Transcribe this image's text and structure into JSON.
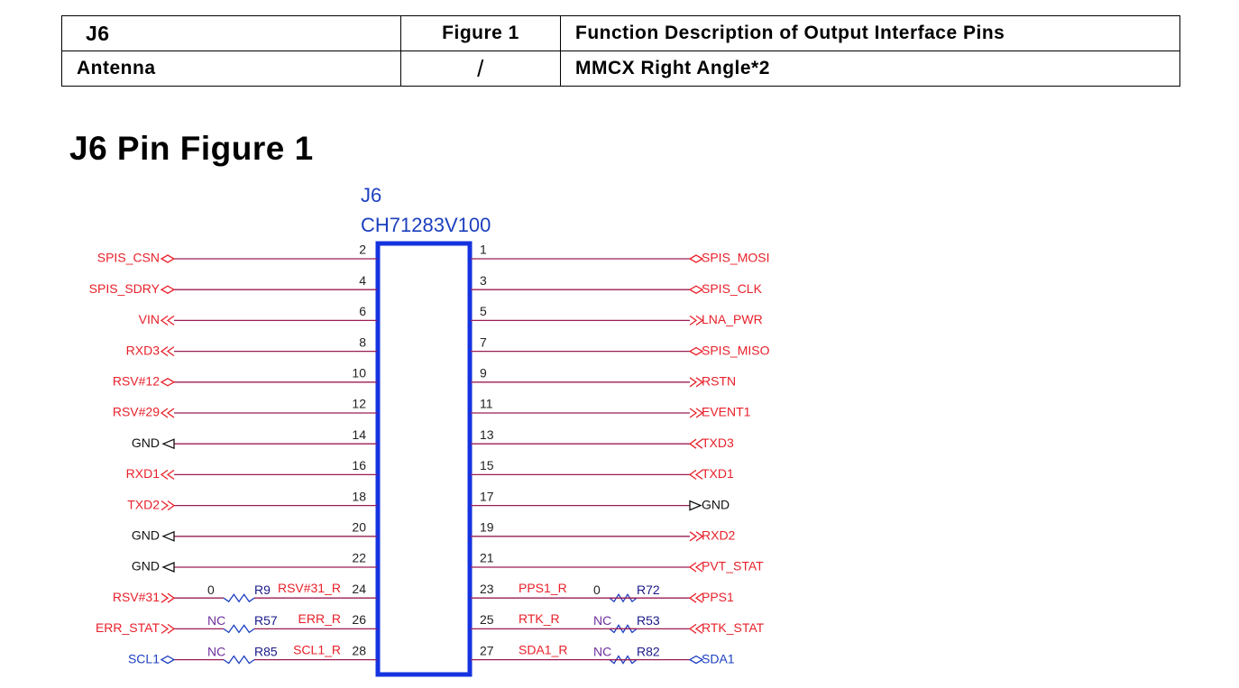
{
  "table": {
    "rows": [
      [
        "J6",
        "Figure 1",
        "Function Description of Output Interface Pins"
      ],
      [
        "Antenna",
        "/",
        "MMCX Right Angle*2"
      ]
    ]
  },
  "heading": "J6 Pin Figure 1",
  "schematic": {
    "ref": "J6",
    "part": "CH71283V100",
    "net_color": "#e8202a",
    "left": [
      {
        "pin": "2",
        "net": "SPIS_CSN",
        "port": "bidir"
      },
      {
        "pin": "4",
        "net": "SPIS_SDRY",
        "port": "bidir"
      },
      {
        "pin": "6",
        "net": "VIN",
        "port": "arrow-left"
      },
      {
        "pin": "8",
        "net": "RXD3",
        "port": "arrow-left"
      },
      {
        "pin": "10",
        "net": "RSV#12",
        "port": "bidir"
      },
      {
        "pin": "12",
        "net": "RSV#29",
        "port": "arrow-left"
      },
      {
        "pin": "14",
        "net": "GND",
        "port": "ground",
        "color": "#111111"
      },
      {
        "pin": "16",
        "net": "RXD1",
        "port": "arrow-left"
      },
      {
        "pin": "18",
        "net": "TXD2",
        "port": "arrow-right"
      },
      {
        "pin": "20",
        "net": "GND",
        "port": "ground",
        "color": "#111111"
      },
      {
        "pin": "22",
        "net": "GND",
        "port": "ground",
        "color": "#111111"
      },
      {
        "pin": "24",
        "net": "RSV#31",
        "port": "arrow-right",
        "resistor": {
          "value": "0",
          "ref": "R9",
          "signal": "RSV#31_R"
        }
      },
      {
        "pin": "26",
        "net": "ERR_STAT",
        "port": "arrow-right",
        "resistor": {
          "value": "NC",
          "ref": "R57",
          "signal": "ERR_R"
        }
      },
      {
        "pin": "28",
        "net": "SCL1",
        "port": "bidir",
        "color": "#1c3fbf",
        "resistor": {
          "value": "NC",
          "ref": "R85",
          "signal": "SCL1_R"
        }
      }
    ],
    "right": [
      {
        "pin": "1",
        "net": "SPIS_MOSI",
        "port": "bidir"
      },
      {
        "pin": "3",
        "net": "SPIS_CLK",
        "port": "bidir"
      },
      {
        "pin": "5",
        "net": "LNA_PWR",
        "port": "arrow-right"
      },
      {
        "pin": "7",
        "net": "SPIS_MISO",
        "port": "bidir"
      },
      {
        "pin": "9",
        "net": "RSTN",
        "port": "arrow-right"
      },
      {
        "pin": "11",
        "net": "EVENT1",
        "port": "arrow-right"
      },
      {
        "pin": "13",
        "net": "TXD3",
        "port": "arrow-left"
      },
      {
        "pin": "15",
        "net": "TXD1",
        "port": "arrow-left"
      },
      {
        "pin": "17",
        "net": "GND",
        "port": "ground",
        "color": "#111111"
      },
      {
        "pin": "19",
        "net": "RXD2",
        "port": "arrow-right"
      },
      {
        "pin": "21",
        "net": "PVT_STAT",
        "port": "arrow-left"
      },
      {
        "pin": "23",
        "net": "PPS1",
        "port": "arrow-left",
        "resistor": {
          "value": "0",
          "ref": "R72",
          "signal": "PPS1_R"
        }
      },
      {
        "pin": "25",
        "net": "RTK_STAT",
        "port": "arrow-left",
        "resistor": {
          "value": "NC",
          "ref": "R53",
          "signal": "RTK_R"
        }
      },
      {
        "pin": "27",
        "net": "SDA1",
        "port": "bidir",
        "color": "#1c3fbf",
        "resistor": {
          "value": "NC",
          "ref": "R82",
          "signal": "SDA1_R"
        }
      }
    ]
  }
}
